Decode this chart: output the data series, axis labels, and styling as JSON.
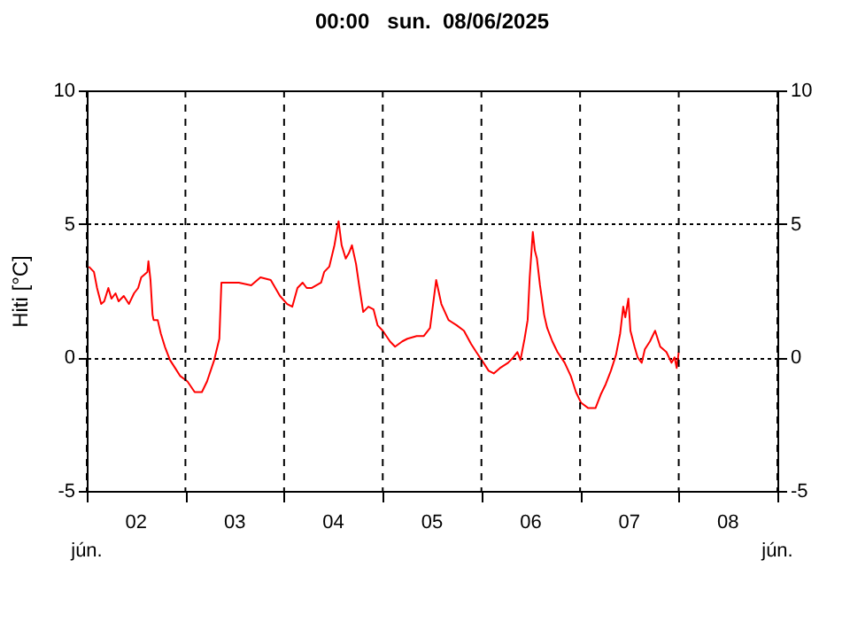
{
  "chart_data": {
    "type": "line",
    "title": "00:00   sun.  08/06/2025",
    "ylabel": "Hiti [°C]",
    "x": [
      "2025-06-02T00:30",
      "2025-06-02T01:45",
      "2025-06-02T02:30",
      "2025-06-02T03:30",
      "2025-06-02T04:15",
      "2025-06-02T05:15",
      "2025-06-02T06:00",
      "2025-06-02T07:00",
      "2025-06-02T07:45",
      "2025-06-02T09:00",
      "2025-06-02T10:15",
      "2025-06-02T11:30",
      "2025-06-02T12:30",
      "2025-06-02T13:15",
      "2025-06-02T14:45",
      "2025-06-02T15:00",
      "2025-06-02T15:30",
      "2025-06-02T16:00",
      "2025-06-02T16:15",
      "2025-06-02T17:15",
      "2025-06-02T18:00",
      "2025-06-02T19:00",
      "2025-06-02T20:15",
      "2025-06-02T21:30",
      "2025-06-02T22:45",
      "2025-06-03T00:30",
      "2025-06-03T02:15",
      "2025-06-03T04:00",
      "2025-06-03T05:15",
      "2025-06-03T07:00",
      "2025-06-03T08:15",
      "2025-06-03T08:45",
      "2025-06-03T10:00",
      "2025-06-03T13:00",
      "2025-06-03T16:00",
      "2025-06-03T18:15",
      "2025-06-03T20:45",
      "2025-06-03T23:00",
      "2025-06-04T00:45",
      "2025-06-04T02:00",
      "2025-06-04T03:15",
      "2025-06-04T04:30",
      "2025-06-04T05:30",
      "2025-06-04T06:45",
      "2025-06-04T09:00",
      "2025-06-04T09:45",
      "2025-06-04T11:00",
      "2025-06-04T12:15",
      "2025-06-04T13:15",
      "2025-06-04T14:00",
      "2025-06-04T15:00",
      "2025-06-04T15:45",
      "2025-06-04T16:30",
      "2025-06-04T17:30",
      "2025-06-04T18:15",
      "2025-06-04T19:15",
      "2025-06-04T20:30",
      "2025-06-04T21:45",
      "2025-06-04T22:45",
      "2025-06-05T00:00",
      "2025-06-05T01:45",
      "2025-06-05T03:00",
      "2025-06-05T04:45",
      "2025-06-05T06:00",
      "2025-06-05T08:15",
      "2025-06-05T10:00",
      "2025-06-05T11:30",
      "2025-06-05T13:00",
      "2025-06-05T14:15",
      "2025-06-05T16:00",
      "2025-06-05T18:00",
      "2025-06-05T19:45",
      "2025-06-05T21:30",
      "2025-06-05T22:45",
      "2025-06-06T00:30",
      "2025-06-06T01:45",
      "2025-06-06T03:00",
      "2025-06-06T04:30",
      "2025-06-06T06:30",
      "2025-06-06T07:45",
      "2025-06-06T08:45",
      "2025-06-06T09:30",
      "2025-06-06T10:30",
      "2025-06-06T11:15",
      "2025-06-06T11:45",
      "2025-06-06T12:30",
      "2025-06-06T13:00",
      "2025-06-06T13:30",
      "2025-06-06T14:15",
      "2025-06-06T15:15",
      "2025-06-06T16:00",
      "2025-06-06T17:15",
      "2025-06-06T18:30",
      "2025-06-06T20:15",
      "2025-06-06T21:45",
      "2025-06-06T23:00",
      "2025-06-07T00:15",
      "2025-06-07T02:00",
      "2025-06-07T03:45",
      "2025-06-07T05:00",
      "2025-06-07T06:15",
      "2025-06-07T07:30",
      "2025-06-07T08:45",
      "2025-06-07T09:45",
      "2025-06-07T10:30",
      "2025-06-07T11:00",
      "2025-06-07T11:45",
      "2025-06-07T12:15",
      "2025-06-07T13:15",
      "2025-06-07T14:00",
      "2025-06-07T15:00",
      "2025-06-07T15:45",
      "2025-06-07T17:00",
      "2025-06-07T18:15",
      "2025-06-07T19:30",
      "2025-06-07T21:00",
      "2025-06-07T22:15",
      "2025-06-07T23:00",
      "2025-06-07T23:30",
      "2025-06-08T00:00"
    ],
    "series": [
      {
        "color": "#ff0000",
        "values": [
          3.4,
          3.2,
          2.6,
          2.0,
          2.1,
          2.6,
          2.2,
          2.4,
          2.1,
          2.3,
          2.0,
          2.4,
          2.6,
          3.0,
          3.2,
          3.6,
          2.9,
          1.6,
          1.4,
          1.4,
          0.9,
          0.4,
          -0.1,
          -0.4,
          -0.7,
          -0.9,
          -1.3,
          -1.3,
          -0.9,
          -0.1,
          0.7,
          2.8,
          2.8,
          2.8,
          2.7,
          3.0,
          2.9,
          2.3,
          2.0,
          1.9,
          2.6,
          2.8,
          2.6,
          2.6,
          2.8,
          3.2,
          3.4,
          4.2,
          5.1,
          4.2,
          3.7,
          3.9,
          4.2,
          3.5,
          2.7,
          1.7,
          1.9,
          1.8,
          1.2,
          1.0,
          0.6,
          0.4,
          0.6,
          0.7,
          0.8,
          0.8,
          1.1,
          2.9,
          2.0,
          1.4,
          1.2,
          1.0,
          0.5,
          0.2,
          -0.2,
          -0.5,
          -0.6,
          -0.4,
          -0.2,
          0.0,
          0.2,
          -0.1,
          0.7,
          1.4,
          3.0,
          4.7,
          4.0,
          3.7,
          2.7,
          1.6,
          1.1,
          0.6,
          0.2,
          -0.2,
          -0.7,
          -1.3,
          -1.7,
          -1.9,
          -1.9,
          -1.4,
          -1.0,
          -0.5,
          0.1,
          0.9,
          1.9,
          1.5,
          2.2,
          1.0,
          0.4,
          0.0,
          -0.2,
          0.3,
          0.6,
          1.0,
          0.4,
          0.2,
          -0.2,
          0.0,
          -0.4,
          0.2
        ]
      }
    ],
    "xlim": [
      "2025-06-02T00:00",
      "2025-06-09T00:00"
    ],
    "xticks": [
      {
        "value": "2025-06-02T00:00",
        "label": null
      },
      {
        "value": "2025-06-02T12:00",
        "label": "02"
      },
      {
        "value": "2025-06-03T00:00",
        "label": null
      },
      {
        "value": "2025-06-03T12:00",
        "label": "03"
      },
      {
        "value": "2025-06-04T00:00",
        "label": null
      },
      {
        "value": "2025-06-04T12:00",
        "label": "04"
      },
      {
        "value": "2025-06-05T00:00",
        "label": null
      },
      {
        "value": "2025-06-05T12:00",
        "label": "05"
      },
      {
        "value": "2025-06-06T00:00",
        "label": null
      },
      {
        "value": "2025-06-06T12:00",
        "label": "06"
      },
      {
        "value": "2025-06-07T00:00",
        "label": null
      },
      {
        "value": "2025-06-07T12:00",
        "label": "07"
      },
      {
        "value": "2025-06-08T00:00",
        "label": null
      },
      {
        "value": "2025-06-08T12:00",
        "label": "08"
      },
      {
        "value": "2025-06-09T00:00",
        "label": null
      }
    ],
    "ylim": [
      -5,
      10
    ],
    "yticks": [
      -5,
      0,
      5,
      10
    ],
    "y2lim": [
      -5,
      10
    ],
    "y2ticks": [
      -5,
      0,
      5,
      10
    ],
    "annotations": [
      "jún.",
      "jún."
    ],
    "grid": true,
    "legend": false,
    "marker": "none",
    "line_style": "solid"
  }
}
